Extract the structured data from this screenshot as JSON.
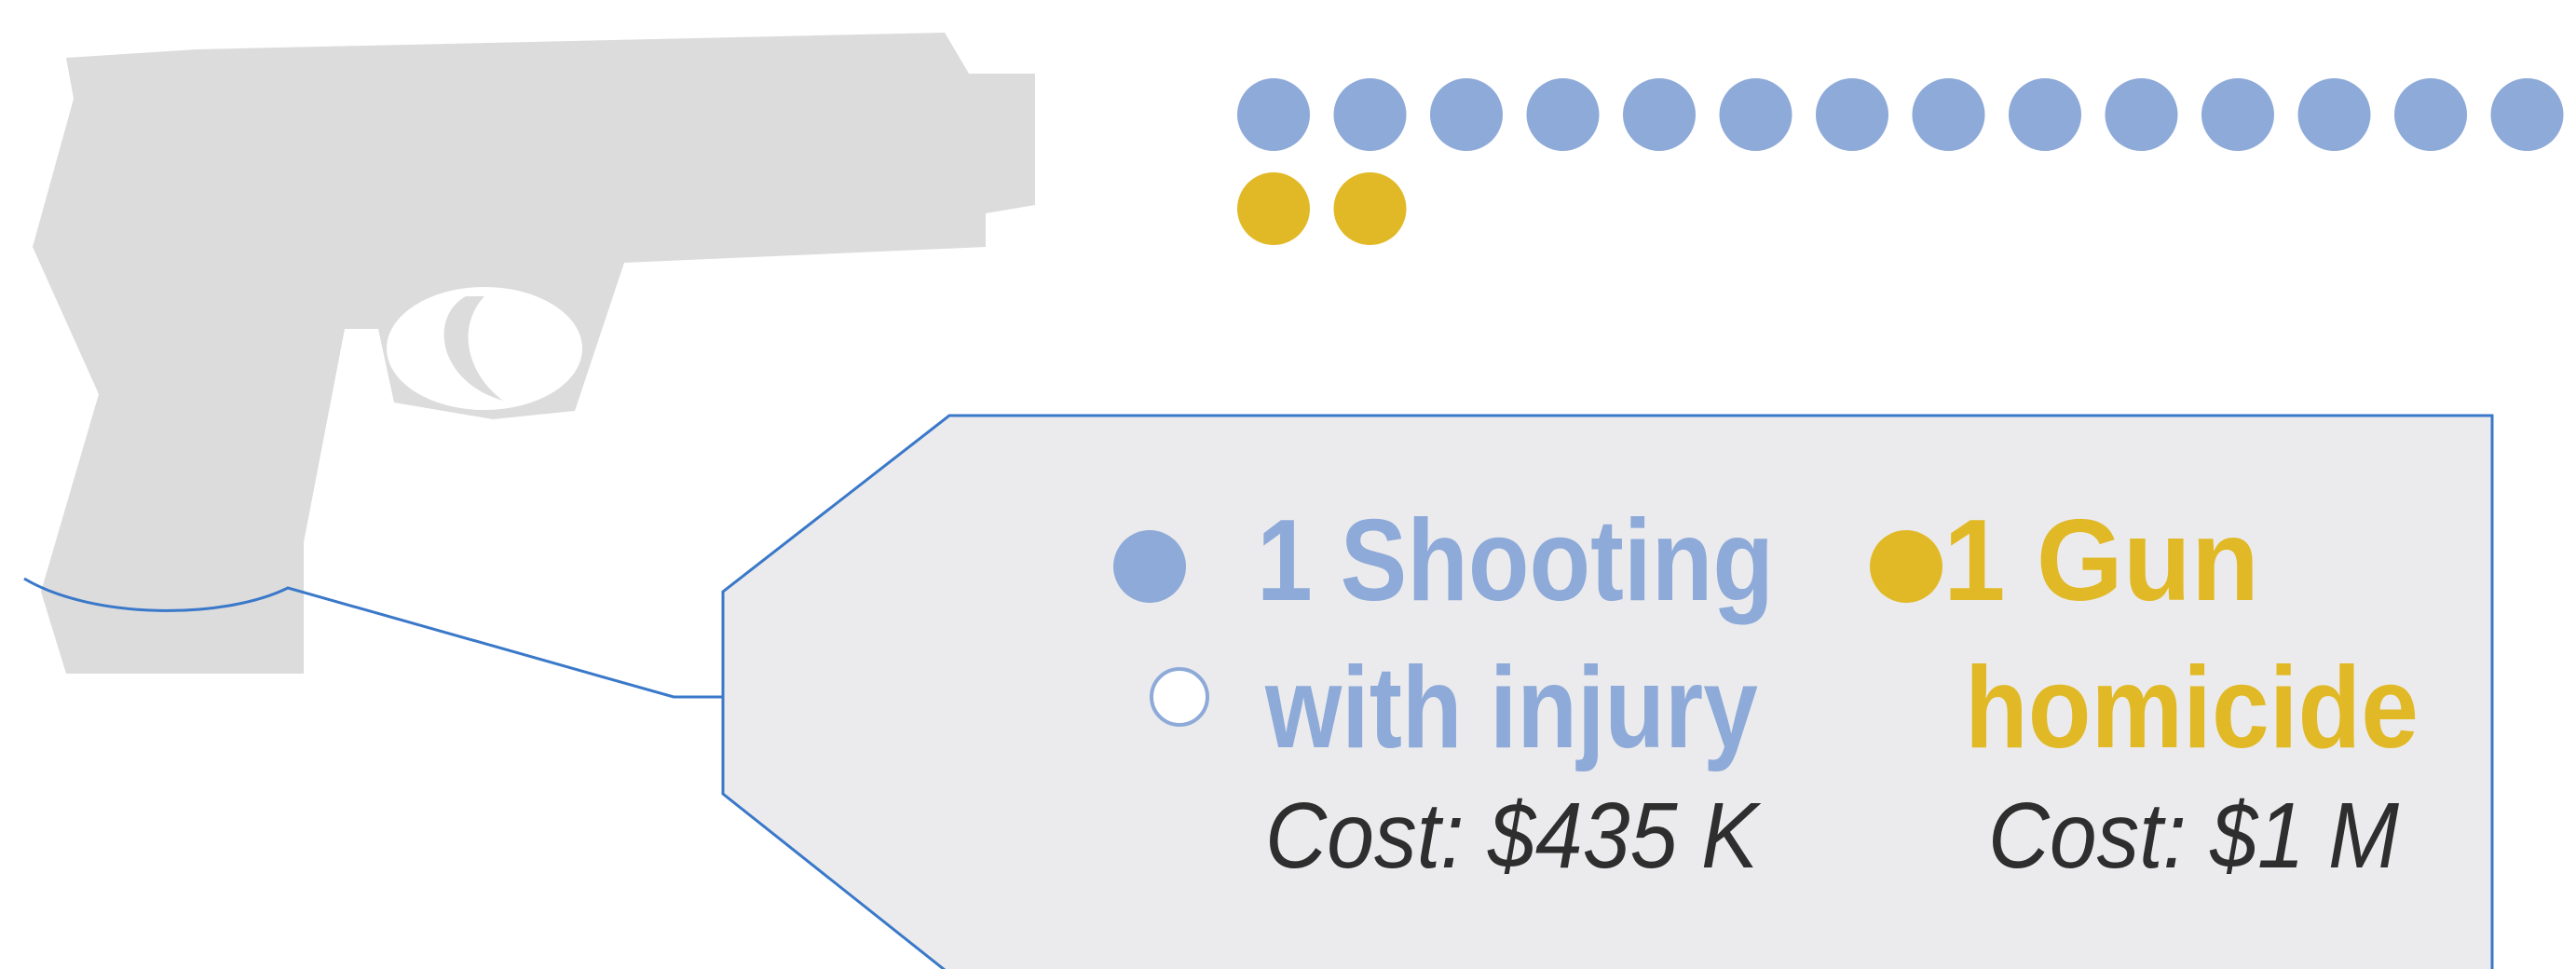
{
  "pictograph": {
    "groups": [
      {
        "color": "#8eaad8",
        "count": 14
      },
      {
        "color": "#e1b927",
        "count": 2
      }
    ]
  },
  "legend": [
    {
      "lines": [
        "1 Shooting",
        "with injury"
      ],
      "cost": "Cost: $435 K"
    },
    {
      "lines": [
        "1 Gun",
        "homicide"
      ],
      "cost": "Cost: $1 M"
    }
  ]
}
